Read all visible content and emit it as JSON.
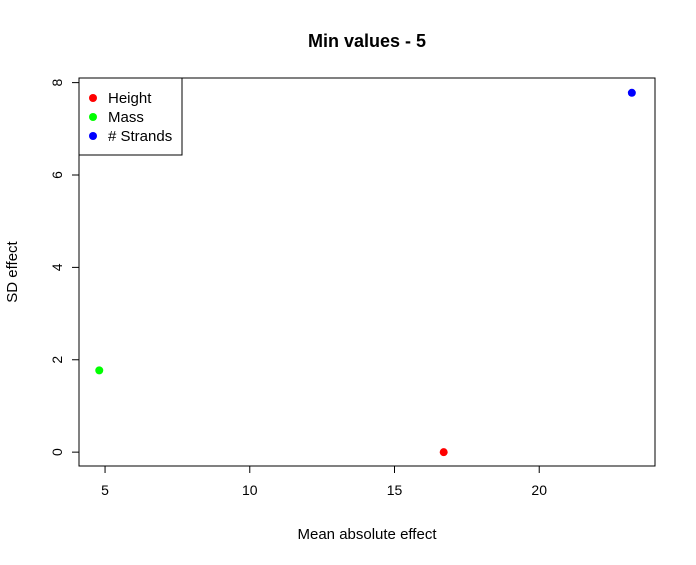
{
  "chart_data": {
    "type": "scatter",
    "title": "Min values - 5",
    "xlabel": "Mean absolute effect",
    "ylabel": "SD effect",
    "xlim": [
      4.1,
      24.0
    ],
    "ylim": [
      -0.3,
      8.1
    ],
    "xticks": [
      5,
      10,
      15,
      20
    ],
    "yticks": [
      0,
      2,
      4,
      6,
      8
    ],
    "grid": false,
    "legend_position": "top-left",
    "series": [
      {
        "name": "Height",
        "color": "#ff0000",
        "points": [
          {
            "x": 16.7,
            "y": 0.0
          }
        ]
      },
      {
        "name": "Mass",
        "color": "#00ff00",
        "points": [
          {
            "x": 4.8,
            "y": 1.77
          }
        ]
      },
      {
        "name": "# Strands",
        "color": "#0000ff",
        "points": [
          {
            "x": 23.2,
            "y": 7.78
          }
        ]
      }
    ]
  }
}
